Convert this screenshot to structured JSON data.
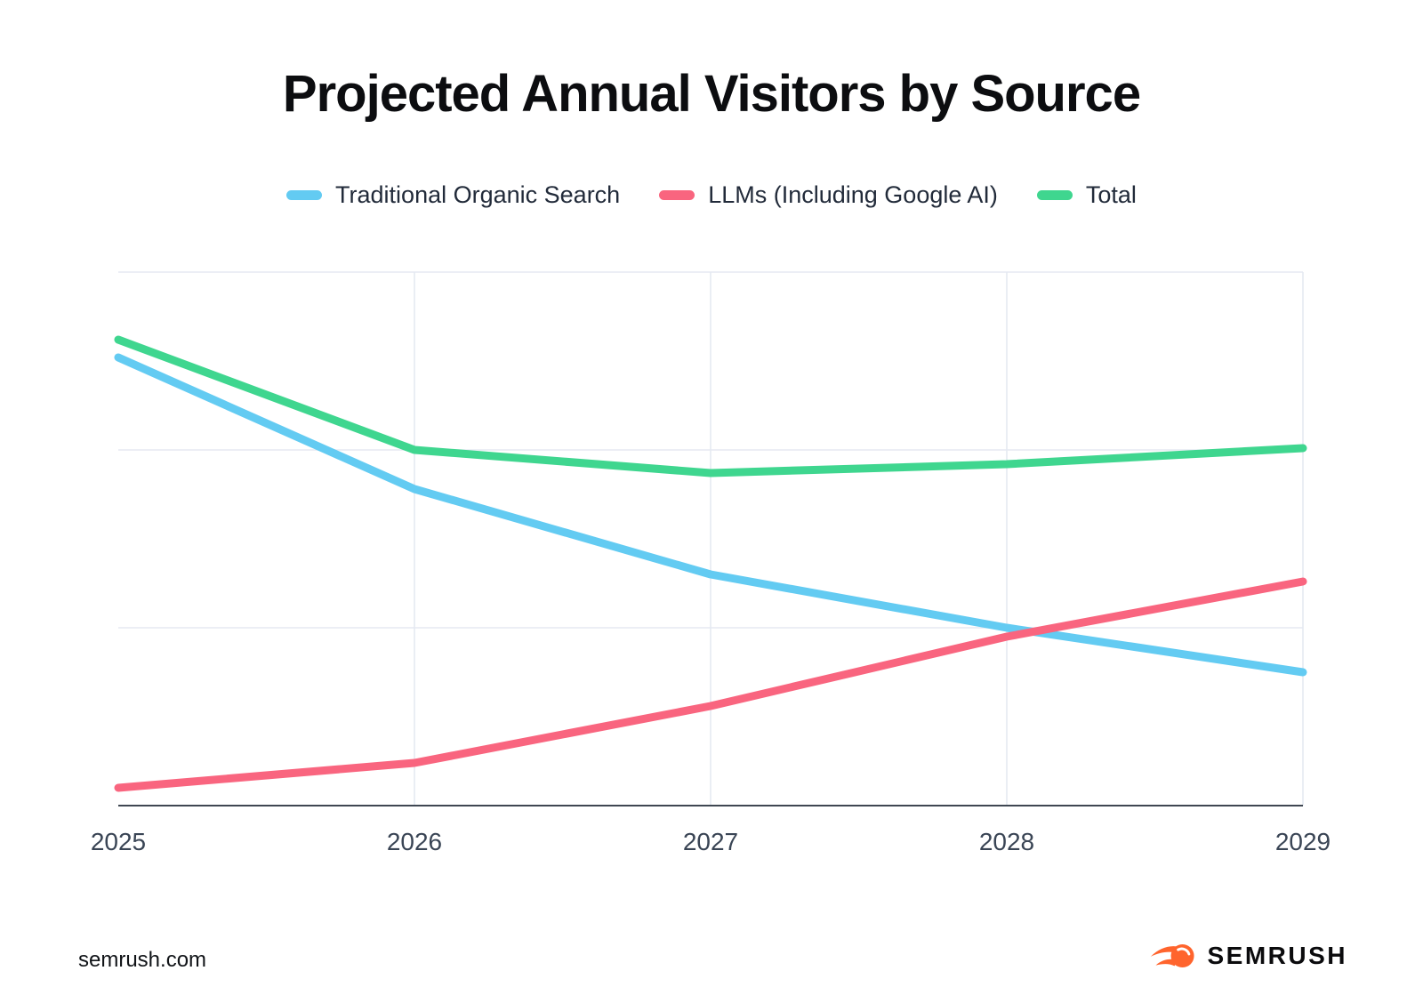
{
  "title": "Projected Annual Visitors by Source",
  "legend": {
    "items": [
      {
        "key": "traditional-organic-search",
        "label": "Traditional Organic Search",
        "color": "#63CBF2"
      },
      {
        "key": "llms-including-google-ai",
        "label": "LLMs (Including Google AI)",
        "color": "#F9657F"
      },
      {
        "key": "total",
        "label": "Total",
        "color": "#3FD68F"
      }
    ]
  },
  "chart_data": {
    "type": "line",
    "x": [
      "2025",
      "2026",
      "2027",
      "2028",
      "2029"
    ],
    "series": [
      {
        "name": "Traditional Organic Search",
        "key": "traditional-organic-search",
        "color": "#63CBF2",
        "values": [
          2.52,
          1.78,
          1.3,
          1.0,
          0.75
        ]
      },
      {
        "name": "LLMs (Including Google AI)",
        "key": "llms-including-google-ai",
        "color": "#F9657F",
        "values": [
          0.1,
          0.24,
          0.56,
          0.95,
          1.26
        ]
      },
      {
        "name": "Total",
        "key": "total",
        "color": "#3FD68F",
        "values": [
          2.62,
          2.0,
          1.87,
          1.92,
          2.01
        ]
      }
    ],
    "title": "Projected Annual Visitors by Source",
    "xlabel": "",
    "ylabel": "",
    "ylim": [
      0,
      3
    ],
    "y_gridlines": [
      1,
      2,
      3
    ],
    "y_axis_labels_visible": false,
    "grid": true,
    "legend_position": "top",
    "units": "relative (y-axis unlabeled)"
  },
  "footer": {
    "source": "semrush.com",
    "brand": "SEMRUSH"
  },
  "colors": {
    "grid": "#E5E9F2",
    "axis": "#3F4752",
    "tick_label": "#3A4555",
    "title": "#0C0D10",
    "legend_text": "#222B3A",
    "brand_orange": "#FF642D"
  }
}
